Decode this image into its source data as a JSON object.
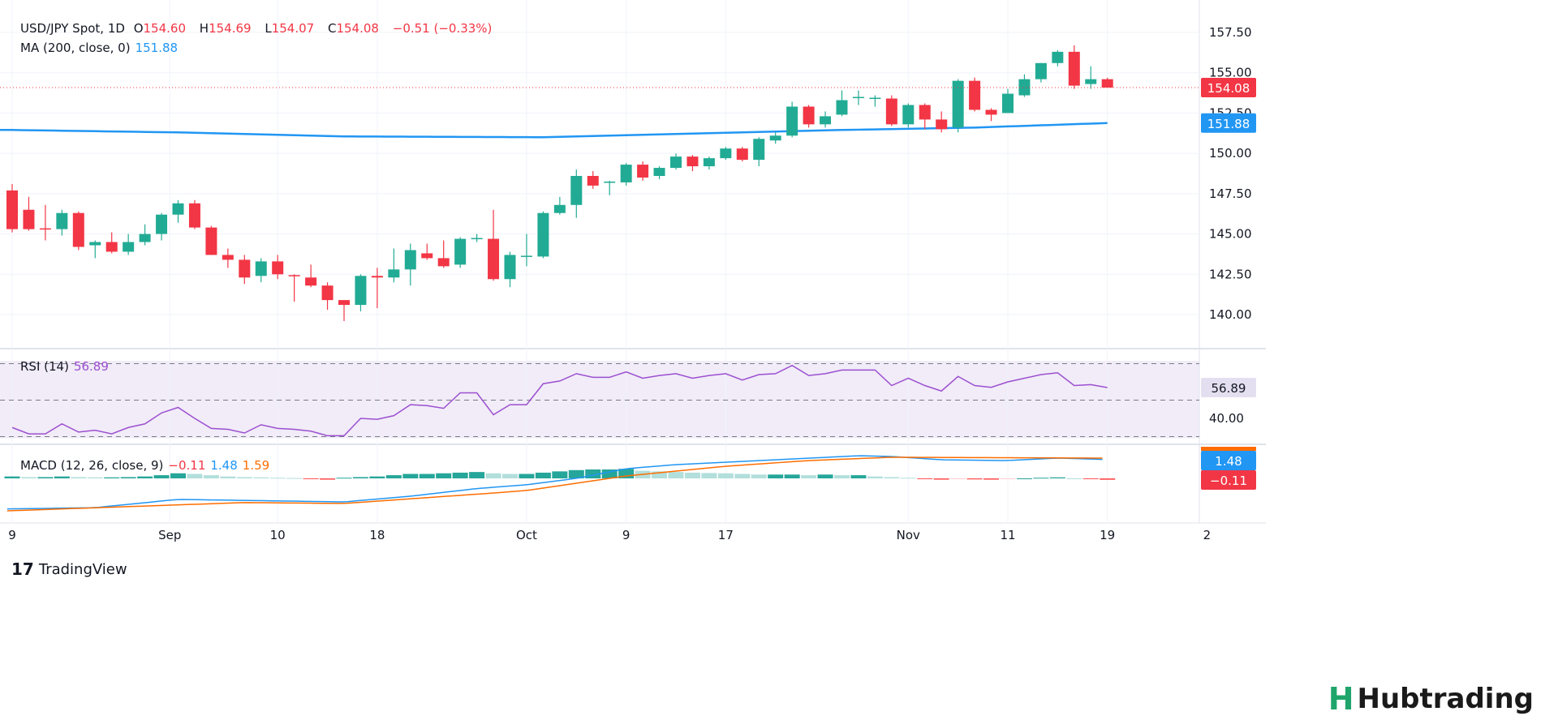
{
  "header": {
    "symbol": "USD/JPY Spot, 1D",
    "o_label": "O",
    "o": "154.60",
    "h_label": "H",
    "h": "154.69",
    "l_label": "L",
    "l": "154.07",
    "c_label": "C",
    "c": "154.08",
    "change": "−0.51 (−0.33%)",
    "ma_label": "MA (200, close, 0)",
    "ma_value": "151.88",
    "rsi_label": "RSI (14)",
    "rsi_value": "56.89",
    "macd_label": "MACD (12, 26, close, 9)",
    "macd_hist": "−0.11",
    "macd_line": "1.48",
    "macd_signal": "1.59"
  },
  "colors": {
    "up": "#22ab94",
    "down": "#f23645",
    "ma": "#2196f3",
    "rsi": "#9c4fd0",
    "signal": "#ff6d00"
  },
  "footer": {
    "brand": "TradingView",
    "watermark": "Hubtrading"
  },
  "chart_data": {
    "type": "candlestick",
    "title": "USD/JPY Spot, 1D",
    "price_ticks": [
      "140.00",
      "142.50",
      "145.00",
      "147.50",
      "150.00",
      "152.50",
      "155.00",
      "157.50"
    ],
    "ylim": [
      138.5,
      158.5
    ],
    "x_ticks": [
      {
        "i": 0,
        "label": "9"
      },
      {
        "i": 9.5,
        "label": "Sep"
      },
      {
        "i": 16,
        "label": "10"
      },
      {
        "i": 22,
        "label": "18"
      },
      {
        "i": 31,
        "label": "Oct"
      },
      {
        "i": 37,
        "label": "9"
      },
      {
        "i": 43,
        "label": "17"
      },
      {
        "i": 54,
        "label": "Nov"
      },
      {
        "i": 60,
        "label": "11"
      },
      {
        "i": 66,
        "label": "19"
      },
      {
        "i": 72,
        "label": "2"
      }
    ],
    "last_price": "154.08",
    "ma_last": "151.88",
    "candles": [
      [
        147.7,
        148.1,
        145.1,
        145.3
      ],
      [
        146.5,
        147.3,
        145.2,
        145.3
      ],
      [
        145.35,
        146.8,
        144.6,
        145.3
      ],
      [
        145.3,
        146.5,
        144.9,
        146.3
      ],
      [
        146.3,
        146.4,
        144.0,
        144.2
      ],
      [
        144.3,
        144.6,
        143.5,
        144.5
      ],
      [
        144.5,
        145.1,
        143.8,
        143.9
      ],
      [
        143.9,
        145.0,
        143.7,
        144.5
      ],
      [
        144.5,
        145.6,
        144.3,
        145.0
      ],
      [
        145.0,
        146.3,
        144.6,
        146.2
      ],
      [
        146.2,
        147.1,
        145.7,
        146.9
      ],
      [
        146.9,
        147.1,
        145.3,
        145.4
      ],
      [
        145.4,
        145.5,
        143.7,
        143.7
      ],
      [
        143.7,
        144.1,
        142.9,
        143.4
      ],
      [
        143.4,
        143.7,
        141.9,
        142.3
      ],
      [
        142.4,
        143.5,
        142.0,
        143.3
      ],
      [
        143.3,
        143.7,
        142.2,
        142.5
      ],
      [
        142.45,
        142.5,
        140.8,
        142.4
      ],
      [
        142.3,
        143.1,
        141.7,
        141.8
      ],
      [
        141.8,
        142.0,
        140.3,
        140.9
      ],
      [
        140.9,
        140.9,
        139.6,
        140.6
      ],
      [
        140.6,
        142.5,
        140.2,
        142.4
      ],
      [
        142.4,
        142.9,
        140.4,
        142.3
      ],
      [
        142.3,
        144.1,
        142.0,
        142.8
      ],
      [
        142.8,
        144.4,
        141.8,
        144.0
      ],
      [
        143.8,
        144.4,
        143.4,
        143.5
      ],
      [
        143.5,
        144.6,
        142.9,
        143.0
      ],
      [
        143.1,
        144.8,
        142.9,
        144.7
      ],
      [
        144.7,
        145.0,
        144.5,
        144.75
      ],
      [
        144.7,
        146.5,
        142.1,
        142.2
      ],
      [
        142.2,
        143.9,
        141.7,
        143.7
      ],
      [
        143.6,
        145.0,
        143.0,
        143.65
      ],
      [
        143.6,
        146.4,
        143.5,
        146.3
      ],
      [
        146.3,
        147.3,
        146.2,
        146.8
      ],
      [
        146.8,
        149.0,
        146.0,
        148.6
      ],
      [
        148.6,
        148.9,
        147.8,
        148.0
      ],
      [
        148.2,
        148.3,
        147.4,
        148.25
      ],
      [
        148.2,
        149.4,
        148.0,
        149.3
      ],
      [
        149.3,
        149.5,
        148.3,
        148.5
      ],
      [
        148.6,
        149.2,
        148.4,
        149.1
      ],
      [
        149.1,
        150.0,
        149.0,
        149.8
      ],
      [
        149.8,
        149.9,
        148.9,
        149.2
      ],
      [
        149.2,
        149.8,
        149.0,
        149.7
      ],
      [
        149.7,
        150.4,
        149.6,
        150.3
      ],
      [
        150.3,
        150.4,
        149.5,
        149.6
      ],
      [
        149.6,
        151.0,
        149.2,
        150.9
      ],
      [
        150.8,
        151.3,
        150.6,
        151.1
      ],
      [
        151.1,
        153.2,
        151.0,
        152.9
      ],
      [
        152.9,
        153.0,
        151.6,
        151.8
      ],
      [
        151.8,
        152.6,
        151.6,
        152.3
      ],
      [
        152.4,
        153.9,
        152.3,
        153.3
      ],
      [
        153.45,
        153.9,
        153.0,
        153.5
      ],
      [
        153.4,
        153.6,
        152.9,
        153.45
      ],
      [
        153.4,
        153.6,
        151.7,
        151.8
      ],
      [
        151.8,
        153.1,
        151.6,
        153.0
      ],
      [
        153.0,
        153.1,
        151.5,
        152.1
      ],
      [
        152.1,
        152.6,
        151.3,
        151.5
      ],
      [
        151.6,
        154.6,
        151.3,
        154.5
      ],
      [
        154.5,
        154.7,
        152.6,
        152.7
      ],
      [
        152.7,
        152.8,
        152.0,
        152.4
      ],
      [
        152.5,
        154.0,
        152.5,
        153.7
      ],
      [
        153.6,
        154.9,
        153.5,
        154.6
      ],
      [
        154.6,
        155.6,
        154.4,
        155.6
      ],
      [
        155.6,
        156.4,
        155.4,
        156.3
      ],
      [
        156.3,
        156.7,
        154.0,
        154.2
      ],
      [
        154.3,
        155.4,
        154.0,
        154.6
      ],
      [
        154.6,
        154.69,
        154.07,
        154.08
      ]
    ],
    "ma200_anchors": [
      [
        0,
        151.45
      ],
      [
        10,
        151.3
      ],
      [
        20,
        151.05
      ],
      [
        32,
        151.0
      ],
      [
        40,
        151.2
      ],
      [
        50,
        151.45
      ],
      [
        58,
        151.6
      ],
      [
        66,
        151.88
      ]
    ],
    "rsi": {
      "ticks": [
        "40.00"
      ],
      "levels": [
        70,
        50,
        30
      ],
      "values": [
        35,
        31.5,
        31.5,
        37,
        32.5,
        33.5,
        31.5,
        35,
        37,
        43,
        46,
        40,
        34.5,
        34,
        32,
        36.5,
        34.5,
        34,
        33,
        30.5,
        30.5,
        40,
        39.5,
        41.5,
        47.5,
        47,
        45.5,
        54,
        54,
        42,
        47.5,
        47.5,
        59,
        60.5,
        64.5,
        62.5,
        62.5,
        65.5,
        62,
        63.5,
        64.5,
        62,
        63.5,
        64.5,
        61,
        64,
        64.5,
        69,
        63.5,
        64.5,
        66.5,
        66.5,
        66.5,
        58,
        62,
        58,
        55,
        63,
        58,
        57,
        60,
        62,
        64,
        65,
        58,
        58.5,
        56.89
      ]
    },
    "macd": {
      "line_anchors": [
        [
          -0.3,
          -2.4
        ],
        [
          5,
          -2.3
        ],
        [
          10,
          -1.65
        ],
        [
          20,
          -1.85
        ],
        [
          24,
          -1.4
        ],
        [
          28,
          -0.8
        ],
        [
          31,
          -0.5
        ],
        [
          34,
          0
        ],
        [
          37,
          0.76
        ],
        [
          40,
          1.08
        ],
        [
          46,
          1.46
        ],
        [
          51,
          1.78
        ],
        [
          53,
          1.72
        ],
        [
          56,
          1.46
        ],
        [
          60,
          1.4
        ],
        [
          63,
          1.6
        ],
        [
          66,
          1.48
        ]
      ],
      "signal_anchors": [
        [
          -0.3,
          -2.55
        ],
        [
          14,
          -1.9
        ],
        [
          20,
          -1.97
        ],
        [
          29,
          -1.15
        ],
        [
          31,
          -0.95
        ],
        [
          37,
          0.19
        ],
        [
          43,
          0.95
        ],
        [
          48,
          1.4
        ],
        [
          53,
          1.66
        ],
        [
          66,
          1.59
        ]
      ],
      "hist": [
        0.15,
        0.1,
        0.1,
        0.15,
        0.1,
        0.08,
        0.08,
        0.1,
        0.15,
        0.25,
        0.4,
        0.35,
        0.25,
        0.15,
        0.1,
        0.08,
        0.05,
        0.03,
        -0.05,
        -0.1,
        0.05,
        0.1,
        0.15,
        0.25,
        0.35,
        0.35,
        0.4,
        0.45,
        0.5,
        0.4,
        0.35,
        0.35,
        0.45,
        0.55,
        0.65,
        0.7,
        0.7,
        0.75,
        0.6,
        0.55,
        0.5,
        0.45,
        0.42,
        0.4,
        0.35,
        0.3,
        0.3,
        0.3,
        0.25,
        0.3,
        0.25,
        0.25,
        0.15,
        0.1,
        0.05,
        -0.05,
        -0.1,
        -0.05,
        -0.08,
        -0.1,
        -0.05,
        0.0,
        0.05,
        0.08,
        0.0,
        -0.05,
        -0.11
      ]
    }
  }
}
